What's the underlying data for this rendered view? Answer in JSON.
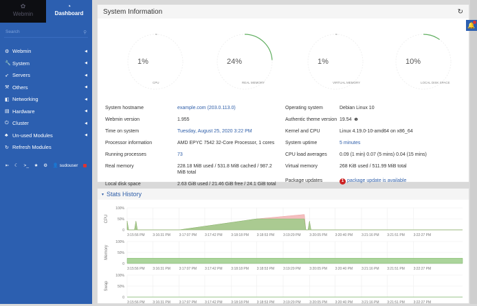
{
  "sidebar": {
    "tabs": [
      {
        "label": "Webmin",
        "icon": "webmin-logo-icon"
      },
      {
        "label": "Dashboard",
        "icon": "dashboard-icon"
      }
    ],
    "search_placeholder": "Search",
    "items": [
      {
        "label": "Webmin",
        "icon": "gear-icon",
        "sub": true
      },
      {
        "label": "System",
        "icon": "wrench-icon",
        "sub": true
      },
      {
        "label": "Servers",
        "icon": "rocket-icon",
        "sub": true
      },
      {
        "label": "Others",
        "icon": "tools-icon",
        "sub": true
      },
      {
        "label": "Networking",
        "icon": "shield-icon",
        "sub": true
      },
      {
        "label": "Hardware",
        "icon": "hdd-icon",
        "sub": true
      },
      {
        "label": "Cluster",
        "icon": "power-icon",
        "sub": true
      },
      {
        "label": "Un-used Modules",
        "icon": "puzzle-icon",
        "sub": true
      },
      {
        "label": "Refresh Modules",
        "icon": "refresh-icon",
        "sub": false
      }
    ],
    "footer": {
      "user": "sudouser"
    }
  },
  "sysinfo": {
    "title": "System Information",
    "gauges": [
      {
        "label": "CPU",
        "value": "1%",
        "percent": 1
      },
      {
        "label": "REAL MEMORY",
        "value": "24%",
        "percent": 24
      },
      {
        "label": "VIRTUAL MEMORY",
        "value": "1%",
        "percent": 1
      },
      {
        "label": "LOCAL DISK SPACE",
        "value": "10%",
        "percent": 10
      }
    ],
    "left": [
      {
        "k": "System hostname",
        "v": "example.com (203.0.113.0)",
        "link": true
      },
      {
        "k": "Webmin version",
        "v": "1.955"
      },
      {
        "k": "Time on system",
        "v": "Tuesday, August 25, 2020 3:22 PM",
        "link": true
      },
      {
        "k": "Processor information",
        "v": "AMD EPYC 7542 32-Core Processor, 1 cores"
      },
      {
        "k": "Running processes",
        "v": "73",
        "link": true
      },
      {
        "k": "Real memory",
        "v": "228.18 MiB used / 531.8 MiB cached / 987.2 MiB total"
      },
      {
        "k": "Local disk space",
        "v": "2.63 GiB used / 21.46 GiB free / 24.1 GiB total"
      }
    ],
    "right": [
      {
        "k": "Operating system",
        "v": "Debian Linux 10"
      },
      {
        "k": "Authentic theme version",
        "v": "19.54"
      },
      {
        "k": "Kernel and CPU",
        "v": "Linux 4.19.0-10-amd64 on x86_64"
      },
      {
        "k": "System uptime",
        "v": "5 minutes",
        "link": true
      },
      {
        "k": "CPU load averages",
        "v": "0.09 (1 min) 0.07 (5 mins) 0.04 (15 mins)"
      },
      {
        "k": "Virtual memory",
        "v": "268 KiB used / 511.99 MiB total"
      },
      {
        "k": "Package updates",
        "v": "package update is available",
        "link": true,
        "badge": "1"
      }
    ]
  },
  "stats": {
    "title": "Stats History",
    "colors": {
      "green": "#9ccc8a",
      "red": "#f2b3b3"
    },
    "chart_data": [
      {
        "type": "area",
        "ylabel": "CPU",
        "yticks": [
          "100%",
          "50%",
          "0"
        ],
        "ylim": [
          0,
          100
        ],
        "xticks": [
          "3:15:56 PM",
          "3:16:31 PM",
          "3:17:07 PM",
          "3:17:42 PM",
          "3:18:18 PM",
          "3:18:53 PM",
          "3:19:29 PM",
          "3:20:05 PM",
          "3:20:40 PM",
          "3:21:16 PM",
          "3:21:51 PM",
          "3:22:27 PM"
        ],
        "series": [
          {
            "color": "#f2b3b3",
            "points": [
              [
                "3:15:56",
                40
              ],
              [
                "3:15:58",
                0
              ],
              [
                "3:16:06",
                0
              ],
              [
                "3:16:08",
                40
              ],
              [
                "3:16:10",
                0
              ],
              [
                "3:17:07",
                0
              ],
              [
                "3:18:53",
                50
              ],
              [
                "3:19:58",
                70
              ],
              [
                "3:20:00",
                0
              ],
              [
                "3:20:03",
                0
              ],
              [
                "3:20:05",
                40
              ],
              [
                "3:20:07",
                0
              ],
              [
                "3:23:34",
                0
              ]
            ]
          },
          {
            "color": "#9ccc8a",
            "points": [
              [
                "3:15:56",
                40
              ],
              [
                "3:15:58",
                0
              ],
              [
                "3:16:06",
                0
              ],
              [
                "3:16:08",
                40
              ],
              [
                "3:16:10",
                0
              ],
              [
                "3:17:07",
                0
              ],
              [
                "3:18:53",
                50
              ],
              [
                "3:19:58",
                50
              ],
              [
                "3:20:00",
                0
              ],
              [
                "3:20:03",
                0
              ],
              [
                "3:20:05",
                40
              ],
              [
                "3:20:07",
                0
              ],
              [
                "3:23:34",
                0
              ]
            ]
          }
        ]
      },
      {
        "type": "area",
        "ylabel": "Memory",
        "yticks": [
          "100%",
          "50%",
          "0"
        ],
        "ylim": [
          0,
          100
        ],
        "xticks": [
          "3:15:56 PM",
          "3:16:31 PM",
          "3:17:07 PM",
          "3:17:42 PM",
          "3:18:18 PM",
          "3:18:53 PM",
          "3:19:29 PM",
          "3:20:05 PM",
          "3:20:40 PM",
          "3:21:16 PM",
          "3:21:51 PM",
          "3:22:27 PM"
        ],
        "series": [
          {
            "color": "#9ccc8a",
            "points": [
              [
                "3:15:56",
                24
              ],
              [
                "3:23:34",
                24
              ]
            ]
          }
        ]
      },
      {
        "type": "area",
        "ylabel": "Swap",
        "yticks": [
          "100%",
          "50%",
          "0"
        ],
        "ylim": [
          0,
          100
        ],
        "xticks": [
          "3:15:56 PM",
          "3:16:31 PM",
          "3:17:07 PM",
          "3:17:42 PM",
          "3:18:18 PM",
          "3:18:53 PM",
          "3:19:29 PM",
          "3:20:05 PM",
          "3:20:40 PM",
          "3:21:16 PM",
          "3:21:51 PM",
          "3:22:27 PM"
        ],
        "series": [
          {
            "color": "#9ccc8a",
            "points": [
              [
                "3:15:56",
                0
              ],
              [
                "3:23:34",
                0
              ]
            ]
          }
        ]
      }
    ]
  }
}
